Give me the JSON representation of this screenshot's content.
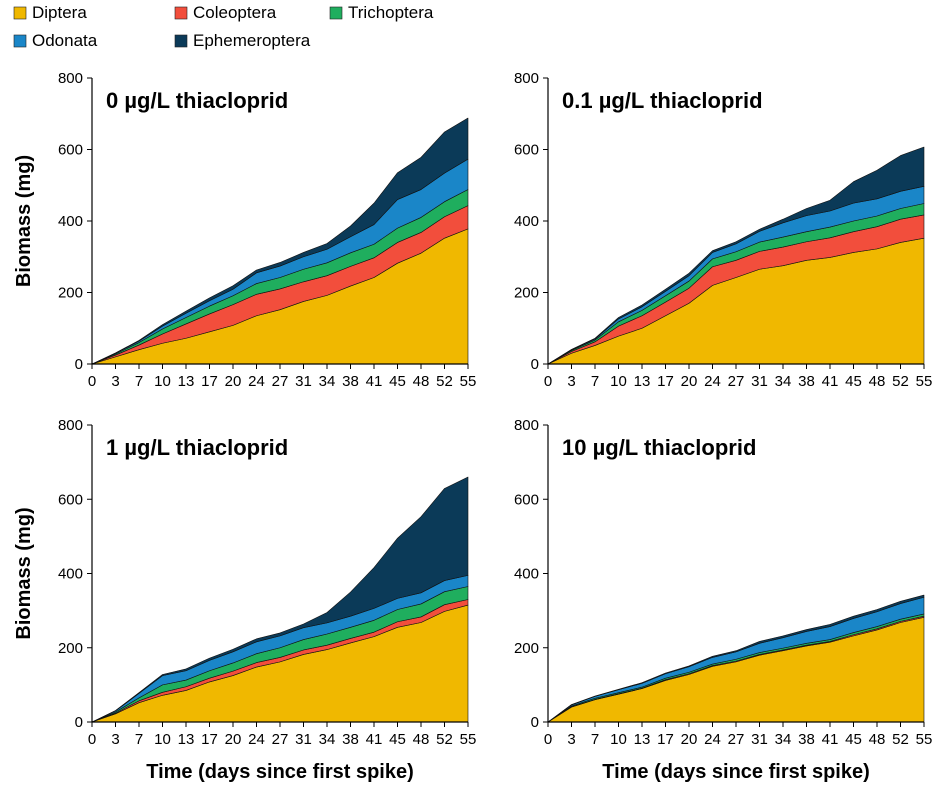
{
  "legend": [
    {
      "label": "Diptera",
      "color": "#F0B800"
    },
    {
      "label": "Coleoptera",
      "color": "#F24E3C"
    },
    {
      "label": "Trichoptera",
      "color": "#1FAE5E"
    },
    {
      "label": "Odonata",
      "color": "#1A86C8"
    },
    {
      "label": "Ephemeroptera",
      "color": "#0B3A58"
    }
  ],
  "chart_data": [
    {
      "type": "area",
      "stacked": true,
      "title": "0 µg/L thiacloprid",
      "xlabel": "",
      "ylabel": "Biomass (mg)",
      "ylim": [
        0,
        800
      ],
      "yticks": [
        "0",
        "200",
        "400",
        "600",
        "800"
      ],
      "x": [
        0,
        3,
        7,
        10,
        13,
        17,
        20,
        24,
        27,
        31,
        34,
        38,
        41,
        45,
        48,
        52,
        55
      ],
      "series": [
        {
          "name": "Diptera",
          "values": [
            0,
            20,
            40,
            58,
            72,
            90,
            108,
            135,
            152,
            175,
            192,
            218,
            242,
            282,
            310,
            352,
            378
          ]
        },
        {
          "name": "Coleoptera",
          "values": [
            0,
            5,
            13,
            26,
            40,
            50,
            58,
            60,
            58,
            55,
            55,
            55,
            55,
            58,
            58,
            60,
            65
          ]
        },
        {
          "name": "Trichoptera",
          "values": [
            0,
            3,
            7,
            14,
            18,
            22,
            25,
            30,
            32,
            35,
            36,
            38,
            38,
            40,
            42,
            42,
            45
          ]
        },
        {
          "name": "Odonata",
          "values": [
            0,
            2,
            4,
            8,
            12,
            15,
            18,
            30,
            32,
            35,
            38,
            45,
            55,
            80,
            78,
            80,
            85
          ]
        },
        {
          "name": "Ephemeroptera",
          "values": [
            0,
            1,
            2,
            4,
            6,
            8,
            10,
            8,
            10,
            12,
            16,
            30,
            60,
            75,
            90,
            115,
            115
          ]
        }
      ]
    },
    {
      "type": "area",
      "stacked": true,
      "title": "0.1 µg/L thiacloprid",
      "xlabel": "",
      "ylabel": "",
      "ylim": [
        0,
        800
      ],
      "yticks": [
        "0",
        "200",
        "400",
        "600",
        "800"
      ],
      "x": [
        0,
        3,
        7,
        10,
        13,
        17,
        20,
        24,
        27,
        31,
        34,
        38,
        41,
        45,
        48,
        52,
        55
      ],
      "series": [
        {
          "name": "Diptera",
          "values": [
            0,
            30,
            52,
            78,
            100,
            135,
            170,
            220,
            242,
            265,
            275,
            290,
            298,
            312,
            322,
            340,
            352
          ]
        },
        {
          "name": "Coleoptera",
          "values": [
            0,
            5,
            10,
            28,
            35,
            38,
            42,
            52,
            48,
            50,
            52,
            52,
            55,
            58,
            62,
            65,
            65
          ]
        },
        {
          "name": "Trichoptera",
          "values": [
            0,
            3,
            5,
            12,
            15,
            18,
            20,
            22,
            24,
            26,
            28,
            28,
            30,
            30,
            30,
            30,
            32
          ]
        },
        {
          "name": "Odonata",
          "values": [
            0,
            2,
            3,
            8,
            10,
            12,
            15,
            18,
            22,
            30,
            40,
            45,
            45,
            50,
            48,
            48,
            48
          ]
        },
        {
          "name": "Ephemeroptera",
          "values": [
            0,
            1,
            2,
            4,
            5,
            6,
            7,
            5,
            6,
            6,
            10,
            20,
            30,
            60,
            80,
            100,
            110
          ]
        }
      ]
    },
    {
      "type": "area",
      "stacked": true,
      "title": "1 µg/L thiacloprid",
      "xlabel": "Time (days since first spike)",
      "ylabel": "Biomass (mg)",
      "ylim": [
        0,
        800
      ],
      "yticks": [
        "0",
        "200",
        "400",
        "600",
        "800"
      ],
      "x": [
        0,
        3,
        7,
        10,
        13,
        17,
        20,
        24,
        27,
        31,
        34,
        38,
        41,
        45,
        48,
        52,
        55
      ],
      "series": [
        {
          "name": "Diptera",
          "values": [
            0,
            22,
            52,
            72,
            85,
            108,
            125,
            148,
            162,
            182,
            195,
            213,
            230,
            255,
            268,
            298,
            315
          ]
        },
        {
          "name": "Coleoptera",
          "values": [
            0,
            2,
            5,
            8,
            10,
            10,
            12,
            12,
            12,
            12,
            12,
            12,
            12,
            15,
            15,
            18,
            15
          ]
        },
        {
          "name": "Trichoptera",
          "values": [
            0,
            3,
            8,
            20,
            18,
            20,
            22,
            24,
            26,
            28,
            30,
            30,
            32,
            33,
            35,
            35,
            35
          ]
        },
        {
          "name": "Odonata",
          "values": [
            0,
            3,
            12,
            25,
            25,
            28,
            30,
            32,
            32,
            32,
            30,
            30,
            32,
            30,
            30,
            30,
            30
          ]
        },
        {
          "name": "Ephemeroptera",
          "values": [
            0,
            1,
            2,
            3,
            5,
            6,
            7,
            8,
            8,
            10,
            28,
            65,
            110,
            162,
            205,
            248,
            265
          ]
        }
      ]
    },
    {
      "type": "area",
      "stacked": true,
      "title": "10 µg/L thiacloprid",
      "xlabel": "Time (days since first spike)",
      "ylabel": "",
      "ylim": [
        0,
        800
      ],
      "yticks": [
        "0",
        "200",
        "400",
        "600",
        "800"
      ],
      "x": [
        0,
        3,
        7,
        10,
        13,
        17,
        20,
        24,
        27,
        31,
        34,
        38,
        41,
        45,
        48,
        52,
        55
      ],
      "series": [
        {
          "name": "Diptera",
          "values": [
            0,
            40,
            60,
            75,
            90,
            112,
            128,
            150,
            162,
            180,
            192,
            205,
            215,
            232,
            248,
            268,
            282
          ]
        },
        {
          "name": "Coleoptera",
          "values": [
            0,
            1,
            1,
            1,
            1,
            2,
            2,
            2,
            2,
            2,
            2,
            2,
            2,
            3,
            3,
            3,
            3
          ]
        },
        {
          "name": "Trichoptera",
          "values": [
            0,
            2,
            3,
            3,
            3,
            4,
            4,
            4,
            5,
            5,
            5,
            5,
            5,
            6,
            6,
            6,
            6
          ]
        },
        {
          "name": "Odonata",
          "values": [
            0,
            3,
            5,
            8,
            10,
            12,
            15,
            18,
            20,
            25,
            28,
            32,
            35,
            38,
            40,
            42,
            45
          ]
        },
        {
          "name": "Ephemeroptera",
          "values": [
            0,
            1,
            1,
            1,
            2,
            2,
            2,
            3,
            3,
            5,
            5,
            5,
            6,
            6,
            6,
            6,
            6
          ]
        }
      ]
    }
  ]
}
